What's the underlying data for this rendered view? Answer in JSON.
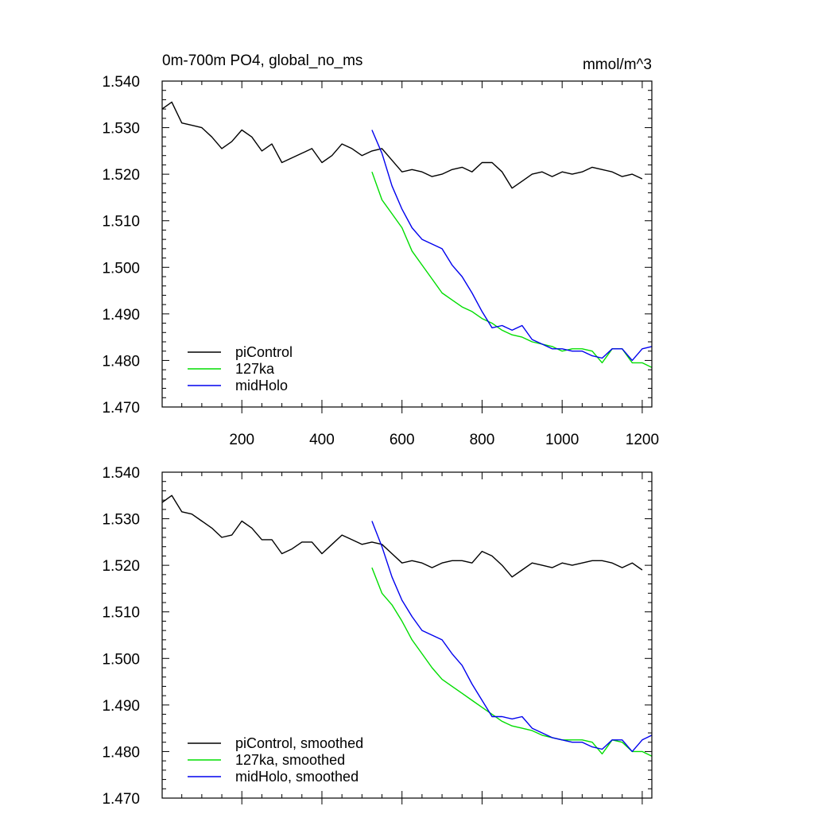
{
  "chart_data": [
    {
      "type": "line",
      "panel": "top",
      "title_left": "0m-700m PO4, global_no_ms",
      "title_right": "mmol/m^3",
      "xlim": [
        1,
        1224
      ],
      "ylim": [
        1.47,
        1.54
      ],
      "yticks": [
        "1.470",
        "1.480",
        "1.490",
        "1.500",
        "1.510",
        "1.520",
        "1.530",
        "1.540"
      ],
      "xticks": [
        "200",
        "400",
        "600",
        "800",
        "1000",
        "1200"
      ],
      "show_x_labels": true,
      "legend_position": "bottom-left",
      "series": [
        {
          "name": "piControl",
          "color": "#000000",
          "x": [
            1,
            25,
            50,
            75,
            100,
            125,
            150,
            175,
            200,
            225,
            250,
            275,
            300,
            325,
            350,
            375,
            400,
            425,
            450,
            475,
            500,
            525,
            550,
            575,
            600,
            625,
            650,
            675,
            700,
            725,
            750,
            775,
            800,
            825,
            850,
            875,
            900,
            925,
            950,
            975,
            1000,
            1025,
            1050,
            1075,
            1100,
            1125,
            1150,
            1175,
            1200
          ],
          "values": [
            1.534,
            1.5355,
            1.531,
            1.5305,
            1.53,
            1.528,
            1.5255,
            1.527,
            1.5295,
            1.528,
            1.525,
            1.5265,
            1.5225,
            1.5235,
            1.5245,
            1.5255,
            1.5225,
            1.524,
            1.5265,
            1.5255,
            1.524,
            1.525,
            1.5255,
            1.523,
            1.5205,
            1.521,
            1.5205,
            1.5195,
            1.52,
            1.521,
            1.5215,
            1.5205,
            1.5225,
            1.5225,
            1.5205,
            1.517,
            1.5185,
            1.52,
            1.5205,
            1.5195,
            1.5205,
            1.52,
            1.5205,
            1.5215,
            1.521,
            1.5205,
            1.5195,
            1.52,
            1.519
          ]
        },
        {
          "name": "127ka",
          "color": "#00dd00",
          "x": [
            525,
            550,
            575,
            600,
            625,
            650,
            675,
            700,
            725,
            750,
            775,
            800,
            825,
            850,
            875,
            900,
            925,
            950,
            975,
            1000,
            1025,
            1050,
            1075,
            1100,
            1125,
            1150,
            1175,
            1200,
            1224
          ],
          "values": [
            1.5205,
            1.5145,
            1.5115,
            1.5085,
            1.5035,
            1.5005,
            1.4975,
            1.4945,
            1.493,
            1.4915,
            1.4905,
            1.489,
            1.488,
            1.4865,
            1.4855,
            1.485,
            1.484,
            1.4835,
            1.483,
            1.482,
            1.4825,
            1.4825,
            1.482,
            1.4795,
            1.4825,
            1.4825,
            1.4795,
            1.4795,
            1.4785
          ]
        },
        {
          "name": "midHolo",
          "color": "#0000ee",
          "x": [
            525,
            550,
            575,
            600,
            625,
            650,
            675,
            700,
            725,
            750,
            775,
            800,
            825,
            850,
            875,
            900,
            925,
            950,
            975,
            1000,
            1025,
            1050,
            1075,
            1100,
            1125,
            1150,
            1175,
            1200,
            1224
          ],
          "values": [
            1.5295,
            1.5245,
            1.5175,
            1.5125,
            1.5085,
            1.506,
            1.505,
            1.504,
            1.5005,
            1.498,
            1.4945,
            1.4905,
            1.487,
            1.4875,
            1.4865,
            1.4875,
            1.4845,
            1.4835,
            1.4825,
            1.4825,
            1.482,
            1.482,
            1.481,
            1.4805,
            1.4825,
            1.4825,
            1.48,
            1.4825,
            1.483
          ]
        }
      ]
    },
    {
      "type": "line",
      "panel": "bottom",
      "xlim": [
        1,
        1224
      ],
      "ylim": [
        1.47,
        1.54
      ],
      "yticks": [
        "1.470",
        "1.480",
        "1.490",
        "1.500",
        "1.510",
        "1.520",
        "1.530",
        "1.540"
      ],
      "show_x_labels": false,
      "legend_position": "bottom-left",
      "series": [
        {
          "name": "piControl, smoothed",
          "color": "#000000",
          "x": [
            1,
            25,
            50,
            75,
            100,
            125,
            150,
            175,
            200,
            225,
            250,
            275,
            300,
            325,
            350,
            375,
            400,
            425,
            450,
            475,
            500,
            525,
            550,
            575,
            600,
            625,
            650,
            675,
            700,
            725,
            750,
            775,
            800,
            825,
            850,
            875,
            900,
            925,
            950,
            975,
            1000,
            1025,
            1050,
            1075,
            1100,
            1125,
            1150,
            1175,
            1200
          ],
          "values": [
            1.5335,
            1.535,
            1.5315,
            1.531,
            1.5295,
            1.528,
            1.526,
            1.5265,
            1.5295,
            1.528,
            1.5255,
            1.5255,
            1.5225,
            1.5235,
            1.525,
            1.525,
            1.5225,
            1.5245,
            1.5265,
            1.5255,
            1.5245,
            1.525,
            1.5245,
            1.5225,
            1.5205,
            1.521,
            1.5205,
            1.5195,
            1.5205,
            1.521,
            1.521,
            1.5205,
            1.523,
            1.522,
            1.52,
            1.5175,
            1.519,
            1.5205,
            1.52,
            1.5195,
            1.5205,
            1.52,
            1.5205,
            1.521,
            1.521,
            1.5205,
            1.5195,
            1.5205,
            1.519
          ]
        },
        {
          "name": "127ka, smoothed",
          "color": "#00dd00",
          "x": [
            525,
            550,
            575,
            600,
            625,
            650,
            675,
            700,
            725,
            750,
            775,
            800,
            825,
            850,
            875,
            900,
            925,
            950,
            975,
            1000,
            1025,
            1050,
            1075,
            1100,
            1125,
            1150,
            1175,
            1200,
            1224
          ],
          "values": [
            1.5195,
            1.514,
            1.5115,
            1.508,
            1.504,
            1.501,
            1.498,
            1.4955,
            1.494,
            1.4925,
            1.491,
            1.4895,
            1.488,
            1.4865,
            1.4855,
            1.485,
            1.4845,
            1.4835,
            1.483,
            1.4825,
            1.4825,
            1.4825,
            1.482,
            1.4795,
            1.4825,
            1.482,
            1.48,
            1.48,
            1.479
          ]
        },
        {
          "name": "midHolo, smoothed",
          "color": "#0000ee",
          "x": [
            525,
            550,
            575,
            600,
            625,
            650,
            675,
            700,
            725,
            750,
            775,
            800,
            825,
            850,
            875,
            900,
            925,
            950,
            975,
            1000,
            1025,
            1050,
            1075,
            1100,
            1125,
            1150,
            1175,
            1200,
            1224
          ],
          "values": [
            1.5295,
            1.524,
            1.5175,
            1.5125,
            1.509,
            1.506,
            1.505,
            1.504,
            1.501,
            1.4985,
            1.4945,
            1.491,
            1.4875,
            1.4875,
            1.487,
            1.4875,
            1.485,
            1.484,
            1.483,
            1.4825,
            1.482,
            1.482,
            1.481,
            1.4805,
            1.4825,
            1.4825,
            1.48,
            1.4825,
            1.4835
          ]
        }
      ]
    }
  ]
}
